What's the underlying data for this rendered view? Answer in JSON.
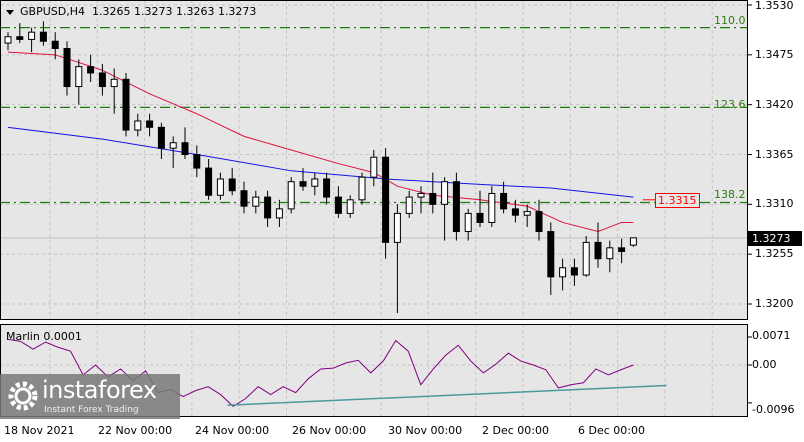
{
  "header": {
    "symbol": "GBPUSD,H4",
    "ohlc": "1.3265 1.3273 1.3263 1.3273"
  },
  "price_axis": [
    "1.3530",
    "1.3475",
    "1.3420",
    "1.3365",
    "1.3310",
    "1.3255",
    "1.3200"
  ],
  "price_axis_values": [
    1.353,
    1.3475,
    1.342,
    1.3365,
    1.331,
    1.3255,
    1.32
  ],
  "current_price": "1.3273",
  "ma_tag": "1.3315",
  "fib_levels": [
    {
      "label": "110.0",
      "price": 1.3505
    },
    {
      "label": "123.6",
      "price": 1.3417
    },
    {
      "label": "138.2",
      "price": 1.3312
    }
  ],
  "indicator": {
    "title": "Marlin 0.0001",
    "axis": [
      "0.0071",
      "0.00",
      "-0.0096"
    ],
    "axis_values": [
      0.0071,
      0,
      -0.0096
    ]
  },
  "time_axis": [
    "18 Nov 2021",
    "22 Nov 00:00",
    "24 Nov 00:00",
    "26 Nov 00:00",
    "30 Nov 00:00",
    "2 Dec 00:00",
    "6 Dec 00:00"
  ],
  "logo": {
    "name": "instaforex",
    "tagline": "Instant Forex Trading"
  },
  "colors": {
    "bg": "#e6e6e6",
    "fib": "#1e7a0e",
    "ma_fast": "#e0143c",
    "ma_slow": "#1414e6",
    "marlin": "#800080",
    "trend": "#4a9a9a"
  },
  "chart_data": {
    "type": "candlestick",
    "candles": [
      [
        1.3488,
        1.35,
        1.348,
        1.3495
      ],
      [
        1.3495,
        1.351,
        1.3488,
        1.3492
      ],
      [
        1.3492,
        1.3505,
        1.3478,
        1.35
      ],
      [
        1.35,
        1.3512,
        1.3485,
        1.349
      ],
      [
        1.349,
        1.35,
        1.347,
        1.3482
      ],
      [
        1.3482,
        1.349,
        1.343,
        1.344
      ],
      [
        1.344,
        1.347,
        1.342,
        1.3462
      ],
      [
        1.3462,
        1.3475,
        1.3445,
        1.3455
      ],
      [
        1.3455,
        1.3465,
        1.343,
        1.344
      ],
      [
        1.344,
        1.346,
        1.341,
        1.3448
      ],
      [
        1.3448,
        1.3455,
        1.3385,
        1.3392
      ],
      [
        1.3392,
        1.341,
        1.3385,
        1.3402
      ],
      [
        1.3402,
        1.341,
        1.3385,
        1.3395
      ],
      [
        1.3395,
        1.34,
        1.336,
        1.3372
      ],
      [
        1.3372,
        1.3385,
        1.335,
        1.3378
      ],
      [
        1.3378,
        1.3395,
        1.336,
        1.3365
      ],
      [
        1.3365,
        1.3375,
        1.334,
        1.335
      ],
      [
        1.335,
        1.336,
        1.3315,
        1.332
      ],
      [
        1.332,
        1.3345,
        1.3315,
        1.3338
      ],
      [
        1.3338,
        1.335,
        1.332,
        1.3325
      ],
      [
        1.3325,
        1.3335,
        1.33,
        1.3308
      ],
      [
        1.3308,
        1.3325,
        1.33,
        1.3318
      ],
      [
        1.3318,
        1.3325,
        1.3285,
        1.3295
      ],
      [
        1.3295,
        1.3315,
        1.3285,
        1.3305
      ],
      [
        1.3305,
        1.334,
        1.33,
        1.3335
      ],
      [
        1.3335,
        1.335,
        1.3325,
        1.333
      ],
      [
        1.333,
        1.3345,
        1.332,
        1.3338
      ],
      [
        1.3338,
        1.3345,
        1.331,
        1.3318
      ],
      [
        1.3318,
        1.333,
        1.3295,
        1.33
      ],
      [
        1.33,
        1.332,
        1.3295,
        1.3315
      ],
      [
        1.3315,
        1.3345,
        1.331,
        1.334
      ],
      [
        1.334,
        1.337,
        1.333,
        1.3362
      ],
      [
        1.3362,
        1.3372,
        1.325,
        1.3268
      ],
      [
        1.3268,
        1.331,
        1.319,
        1.33
      ],
      [
        1.33,
        1.3325,
        1.3295,
        1.3318
      ],
      [
        1.3318,
        1.333,
        1.33,
        1.3322
      ],
      [
        1.3322,
        1.3345,
        1.33,
        1.331
      ],
      [
        1.331,
        1.334,
        1.327,
        1.3335
      ],
      [
        1.3335,
        1.3345,
        1.327,
        1.328
      ],
      [
        1.328,
        1.3305,
        1.327,
        1.33
      ],
      [
        1.33,
        1.3325,
        1.3285,
        1.329
      ],
      [
        1.329,
        1.333,
        1.3285,
        1.3322
      ],
      [
        1.3322,
        1.3335,
        1.33,
        1.3305
      ],
      [
        1.3305,
        1.3315,
        1.329,
        1.3298
      ],
      [
        1.3298,
        1.331,
        1.3285,
        1.3302
      ],
      [
        1.3302,
        1.3315,
        1.327,
        1.328
      ],
      [
        1.328,
        1.329,
        1.321,
        1.323
      ],
      [
        1.323,
        1.325,
        1.3215,
        1.324
      ],
      [
        1.324,
        1.325,
        1.322,
        1.3232
      ],
      [
        1.3232,
        1.3275,
        1.323,
        1.3268
      ],
      [
        1.3268,
        1.329,
        1.324,
        1.325
      ],
      [
        1.325,
        1.327,
        1.3235,
        1.3262
      ],
      [
        1.3262,
        1.3272,
        1.3245,
        1.3258
      ],
      [
        1.3265,
        1.3273,
        1.3263,
        1.3273
      ]
    ],
    "ma_fast": [
      [
        0,
        1.3478
      ],
      [
        4,
        1.3475
      ],
      [
        8,
        1.3458
      ],
      [
        12,
        1.3432
      ],
      [
        16,
        1.341
      ],
      [
        20,
        1.3385
      ],
      [
        24,
        1.337
      ],
      [
        28,
        1.3355
      ],
      [
        31,
        1.3345
      ],
      [
        33,
        1.333
      ],
      [
        36,
        1.332
      ],
      [
        40,
        1.3315
      ],
      [
        44,
        1.3308
      ],
      [
        47,
        1.329
      ],
      [
        50,
        1.328
      ],
      [
        52,
        1.329
      ],
      [
        53,
        1.329
      ]
    ],
    "ma_slow": [
      [
        0,
        1.3395
      ],
      [
        8,
        1.3382
      ],
      [
        16,
        1.3365
      ],
      [
        24,
        1.3347
      ],
      [
        32,
        1.3338
      ],
      [
        40,
        1.3332
      ],
      [
        46,
        1.3328
      ],
      [
        53,
        1.3318
      ]
    ],
    "marlin": [
      0.0065,
      0.006,
      0.004,
      0.0058,
      0.0045,
      0.0035,
      -0.0025,
      0.0,
      -0.003,
      -0.001,
      -0.004,
      -0.0015,
      -0.007,
      -0.0062,
      -0.008,
      -0.0065,
      -0.0055,
      -0.0075,
      -0.0105,
      -0.0085,
      -0.0055,
      -0.0075,
      -0.0055,
      -0.007,
      -0.0035,
      -0.001,
      -0.0008,
      0.0005,
      0.0012,
      -0.002,
      0.001,
      0.0062,
      0.0035,
      -0.005,
      -0.001,
      0.0025,
      0.005,
      0.001,
      -0.002,
      0.0002,
      0.003,
      0.001,
      0.0,
      -0.0012,
      -0.0058,
      -0.005,
      -0.0045,
      -0.001,
      -0.0025,
      -0.0012,
      0.0
    ],
    "trendline": [
      [
        18.6,
        -0.0102
      ],
      [
        55.8,
        -0.0052
      ]
    ],
    "ylim": [
      1.3186,
      1.3535
    ],
    "indicator_ylim": [
      -0.0105,
      0.0078
    ]
  }
}
